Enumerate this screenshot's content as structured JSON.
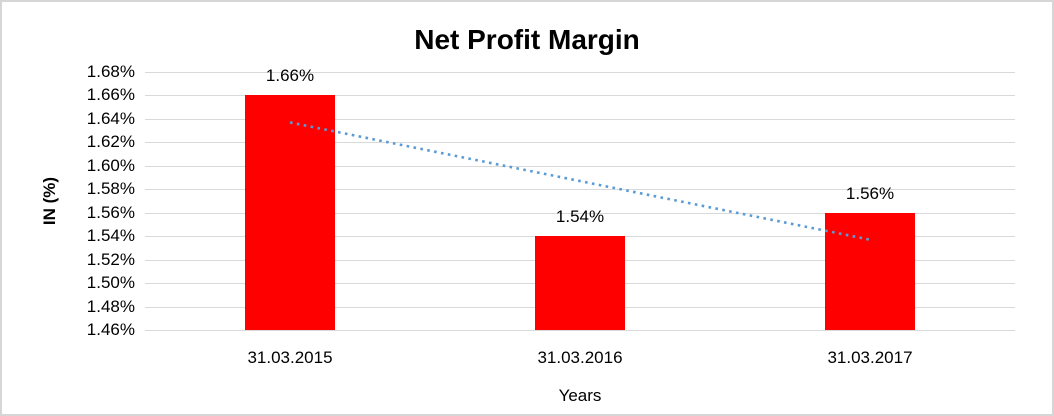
{
  "chart_data": {
    "type": "bar",
    "title": "Net Profit Margin",
    "categories": [
      "31.03.2015",
      "31.03.2016",
      "31.03.2017"
    ],
    "values": [
      1.66,
      1.54,
      1.56
    ],
    "data_labels": [
      "1.66%",
      "1.54%",
      "1.56%"
    ],
    "xlabel": "Years",
    "ylabel": "IN (%)",
    "ylim": [
      1.46,
      1.68
    ],
    "ytick_step": 0.02,
    "ytick_labels": [
      "1.68%",
      "1.66%",
      "1.64%",
      "1.62%",
      "1.60%",
      "1.58%",
      "1.56%",
      "1.54%",
      "1.52%",
      "1.50%",
      "1.48%",
      "1.46%"
    ],
    "grid": true,
    "legend_position": "none",
    "bar_color": "#FF0000",
    "gridline_color": "#D9D9D9",
    "text_color": "#000000",
    "frame_border_color": "#D6D6D6",
    "trendline": {
      "type": "linear",
      "style": "dotted",
      "color": "#5B9BD5",
      "start_value": 1.637,
      "end_value": 1.537
    }
  }
}
